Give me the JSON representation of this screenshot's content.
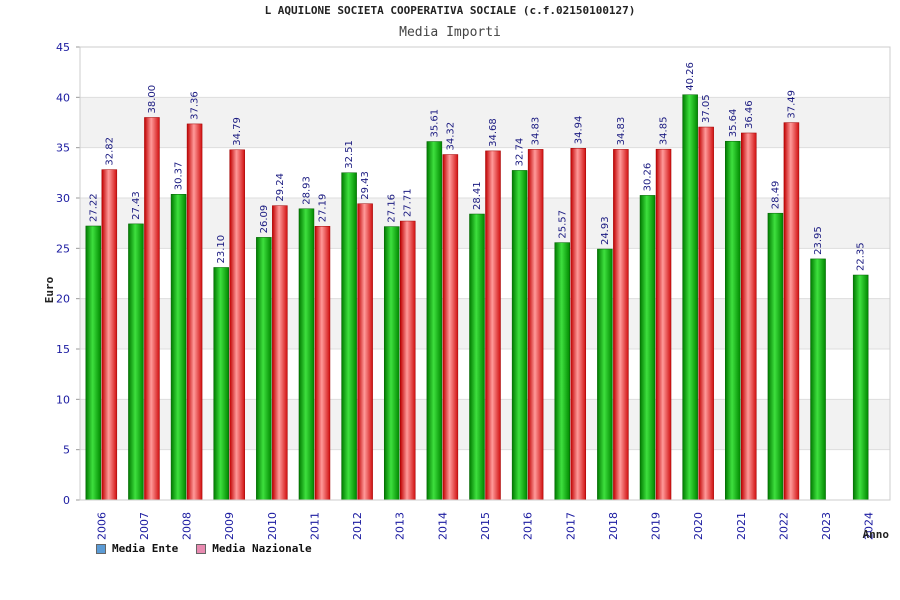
{
  "chart_data": {
    "type": "bar",
    "title": "L AQUILONE SOCIETA COOPERATIVA SOCIALE (c.f.02150100127)",
    "subtitle": "Media Importi",
    "xlabel": "Anno",
    "ylabel": "Euro",
    "ylim": [
      0,
      45
    ],
    "yticks": [
      0,
      5,
      10,
      15,
      20,
      25,
      30,
      35,
      40,
      45
    ],
    "grid": true,
    "legend_position": "bottom-left",
    "categories": [
      "2006",
      "2007",
      "2008",
      "2009",
      "2010",
      "2011",
      "2012",
      "2013",
      "2014",
      "2015",
      "2016",
      "2017",
      "2018",
      "2019",
      "2020",
      "2021",
      "2022",
      "2023",
      "2024"
    ],
    "series": [
      {
        "name": "Media Ente",
        "color": "#00b000",
        "swatch_color": "#5b9bd5",
        "values": [
          27.22,
          27.43,
          30.37,
          23.1,
          26.09,
          28.93,
          32.51,
          27.16,
          35.61,
          28.41,
          32.74,
          25.57,
          24.93,
          30.26,
          40.26,
          35.64,
          28.49,
          23.95,
          22.35
        ],
        "labels": [
          "27.22",
          "27.43",
          "30.37",
          "23.10",
          "26.09",
          "28.93",
          "32.51",
          "27.16",
          "35.61",
          "28.41",
          "32.74",
          "25.57",
          "24.93",
          "30.26",
          "40.26",
          "35.64",
          "28.49",
          "23.95",
          "22.35"
        ]
      },
      {
        "name": "Media Nazionale",
        "color": "#e82020",
        "swatch_color": "#e88ab0",
        "values": [
          32.82,
          38.0,
          37.36,
          34.79,
          29.24,
          27.19,
          29.43,
          27.71,
          34.32,
          34.68,
          34.83,
          34.94,
          34.83,
          34.85,
          37.05,
          36.46,
          37.49,
          null,
          null
        ],
        "labels": [
          "32.82",
          "38.00",
          "37.36",
          "34.79",
          "29.24",
          "27.19",
          "29.43",
          "27.71",
          "34.32",
          "34.68",
          "34.83",
          "34.94",
          "34.83",
          "34.85",
          "37.05",
          "36.46",
          "37.49",
          "",
          ""
        ]
      }
    ]
  }
}
